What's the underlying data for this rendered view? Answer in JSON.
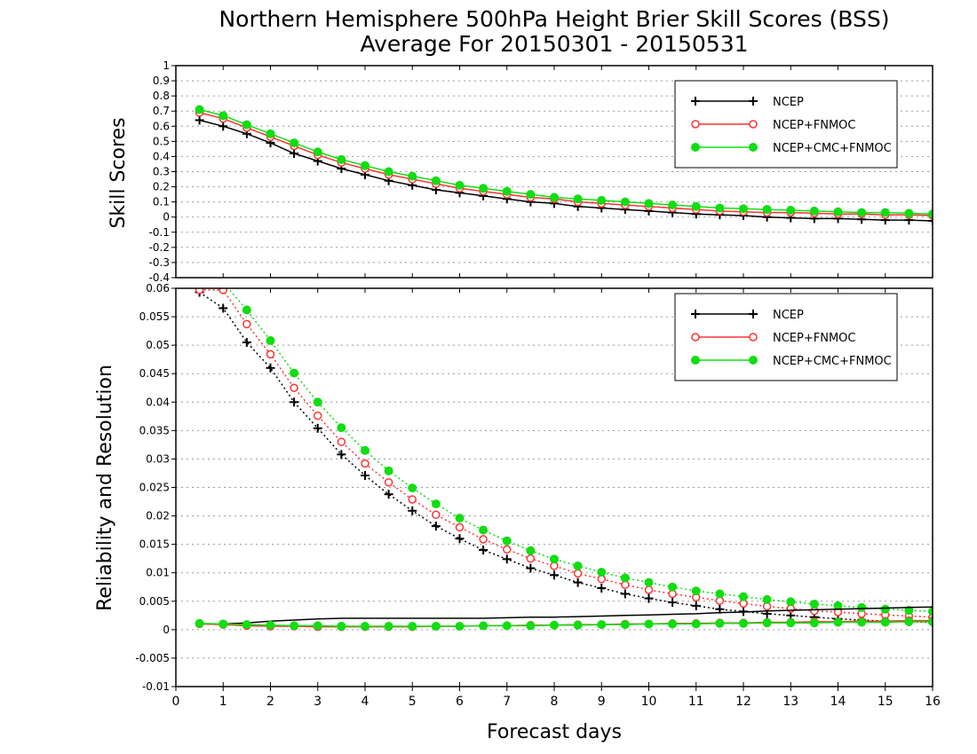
{
  "title": "Northern Hemisphere 500hPa Height Brier Skill Scores (BSS)",
  "subtitle": "Average For 20150301 - 20150531",
  "chart_data": [
    {
      "type": "line",
      "ylabel": "Skill Scores",
      "xlabel": "",
      "ylim": [
        -0.4,
        1
      ],
      "xlim": [
        0,
        16
      ],
      "yticks": [
        "-0.4",
        "-0.3",
        "-0.2",
        "-0.1",
        "0",
        "0.1",
        "0.2",
        "0.3",
        "0.4",
        "0.5",
        "0.6",
        "0.7",
        "0.8",
        "0.9",
        "1"
      ],
      "grid": true,
      "legend_position": "top-right",
      "x": [
        0.5,
        1,
        1.5,
        2,
        2.5,
        3,
        3.5,
        4,
        4.5,
        5,
        5.5,
        6,
        6.5,
        7,
        7.5,
        8,
        8.5,
        9,
        9.5,
        10,
        10.5,
        11,
        11.5,
        12,
        12.5,
        13,
        13.5,
        14,
        14.5,
        15,
        15.5,
        16
      ],
      "series": [
        {
          "name": "NCEP",
          "color": "#000000",
          "marker": "plus",
          "line": "solid",
          "values": [
            0.64,
            0.6,
            0.55,
            0.49,
            0.42,
            0.37,
            0.32,
            0.28,
            0.24,
            0.21,
            0.18,
            0.16,
            0.14,
            0.12,
            0.1,
            0.09,
            0.07,
            0.06,
            0.05,
            0.04,
            0.03,
            0.02,
            0.015,
            0.01,
            0.0,
            -0.005,
            -0.01,
            -0.01,
            -0.015,
            -0.02,
            -0.02,
            -0.025
          ]
        },
        {
          "name": "NCEP+FNMOC",
          "color": "#ff3333",
          "marker": "circle-open",
          "line": "solid",
          "values": [
            0.69,
            0.65,
            0.59,
            0.53,
            0.47,
            0.41,
            0.36,
            0.32,
            0.28,
            0.25,
            0.22,
            0.19,
            0.17,
            0.15,
            0.13,
            0.12,
            0.1,
            0.09,
            0.08,
            0.07,
            0.06,
            0.05,
            0.04,
            0.035,
            0.03,
            0.03,
            0.025,
            0.02,
            0.02,
            0.015,
            0.015,
            0.01
          ]
        },
        {
          "name": "NCEP+CMC+FNMOC",
          "color": "#11dd11",
          "marker": "circle-filled",
          "line": "solid",
          "values": [
            0.71,
            0.67,
            0.61,
            0.55,
            0.49,
            0.43,
            0.38,
            0.34,
            0.3,
            0.27,
            0.24,
            0.21,
            0.19,
            0.17,
            0.15,
            0.13,
            0.12,
            0.11,
            0.1,
            0.09,
            0.08,
            0.07,
            0.06,
            0.055,
            0.05,
            0.045,
            0.04,
            0.035,
            0.03,
            0.03,
            0.025,
            0.02
          ]
        }
      ]
    },
    {
      "type": "line",
      "ylabel": "Reliability and Resolution",
      "xlabel": "Forecast days",
      "ylim": [
        -0.01,
        0.06
      ],
      "xlim": [
        0,
        16
      ],
      "yticks": [
        "-0.01",
        "-0.005",
        "0",
        "0.005",
        "0.01",
        "0.015",
        "0.02",
        "0.025",
        "0.03",
        "0.035",
        "0.04",
        "0.045",
        "0.05",
        "0.055",
        "0.06"
      ],
      "xticks": [
        "0",
        "1",
        "2",
        "3",
        "4",
        "5",
        "6",
        "7",
        "8",
        "9",
        "10",
        "11",
        "12",
        "13",
        "14",
        "15",
        "16"
      ],
      "grid": true,
      "legend_position": "top-right",
      "x": [
        0.5,
        1,
        1.5,
        2,
        2.5,
        3,
        3.5,
        4,
        4.5,
        5,
        5.5,
        6,
        6.5,
        7,
        7.5,
        8,
        8.5,
        9,
        9.5,
        10,
        10.5,
        11,
        11.5,
        12,
        12.5,
        13,
        13.5,
        14,
        14.5,
        15,
        15.5,
        16
      ],
      "series": [
        {
          "name": "NCEP",
          "legend": "NCEP",
          "color": "#000000",
          "marker": "plus",
          "line": "dotted",
          "values": [
            0.0593,
            0.0565,
            0.0505,
            0.046,
            0.04,
            0.0354,
            0.0308,
            0.0271,
            0.0238,
            0.0209,
            0.0182,
            0.016,
            0.014,
            0.0124,
            0.0108,
            0.0096,
            0.0083,
            0.0073,
            0.0063,
            0.0055,
            0.0048,
            0.0042,
            0.0036,
            0.0032,
            0.0028,
            0.0025,
            0.0022,
            0.0019,
            0.0017,
            0.0015,
            0.0014,
            0.0013
          ]
        },
        {
          "name": "NCEP+FNMOC",
          "legend": "NCEP+FNMOC",
          "color": "#ff3333",
          "marker": "circle-open",
          "line": "dotted",
          "values": [
            0.0597,
            0.0597,
            0.0537,
            0.0484,
            0.0425,
            0.0376,
            0.033,
            0.0292,
            0.0259,
            0.0229,
            0.0202,
            0.018,
            0.0159,
            0.0141,
            0.0125,
            0.0112,
            0.0099,
            0.0089,
            0.0079,
            0.007,
            0.0063,
            0.0057,
            0.0051,
            0.0046,
            0.0041,
            0.0037,
            0.0033,
            0.0031,
            0.0028,
            0.0026,
            0.0024,
            0.0022
          ]
        },
        {
          "name": "NCEP+CMC+FNMOC",
          "legend": "NCEP+CMC+FNMOC",
          "color": "#11dd11",
          "marker": "circle-filled",
          "line": "dotted",
          "values": [
            0.0625,
            0.061,
            0.0562,
            0.0508,
            0.0451,
            0.04,
            0.0355,
            0.0315,
            0.0279,
            0.0249,
            0.0221,
            0.0196,
            0.0175,
            0.0156,
            0.0139,
            0.0124,
            0.0112,
            0.0101,
            0.0091,
            0.0083,
            0.0075,
            0.0068,
            0.0063,
            0.0058,
            0.0053,
            0.0049,
            0.0045,
            0.0042,
            0.0039,
            0.0036,
            0.0034,
            0.0032
          ]
        },
        {
          "name": "NCEP",
          "color": "#000000",
          "marker": "none",
          "line": "solid",
          "values": [
            0.001,
            0.001,
            0.0012,
            0.0015,
            0.0017,
            0.0019,
            0.002,
            0.002,
            0.002,
            0.002,
            0.002,
            0.002,
            0.002,
            0.0021,
            0.0022,
            0.0022,
            0.0023,
            0.0024,
            0.0025,
            0.0026,
            0.0027,
            0.0028,
            0.003,
            0.0031,
            0.0033,
            0.0034,
            0.0035,
            0.0036,
            0.0037,
            0.0038,
            0.0039,
            0.004
          ]
        },
        {
          "name": "NCEP+FNMOC",
          "color": "#ff3333",
          "marker": "circle-open",
          "line": "solid",
          "values": [
            0.001,
            0.0009,
            0.0007,
            0.0006,
            0.0006,
            0.0005,
            0.0005,
            0.0005,
            0.0005,
            0.0005,
            0.0006,
            0.0006,
            0.0007,
            0.0007,
            0.0008,
            0.0008,
            0.0009,
            0.0009,
            0.001,
            0.001,
            0.0011,
            0.0011,
            0.0012,
            0.0012,
            0.0013,
            0.0013,
            0.0014,
            0.0014,
            0.0015,
            0.0015,
            0.0016,
            0.0016
          ]
        },
        {
          "name": "NCEP+CMC+FNMOC",
          "color": "#11dd11",
          "marker": "circle-filled",
          "line": "solid",
          "values": [
            0.0011,
            0.001,
            0.0009,
            0.0008,
            0.0007,
            0.0007,
            0.0006,
            0.0006,
            0.0006,
            0.0006,
            0.0006,
            0.0006,
            0.0007,
            0.0007,
            0.0007,
            0.0008,
            0.0008,
            0.0009,
            0.0009,
            0.001,
            0.001,
            0.001,
            0.0011,
            0.0011,
            0.0012,
            0.0012,
            0.0012,
            0.0013,
            0.0013,
            0.0013,
            0.0014,
            0.0014
          ]
        }
      ]
    }
  ]
}
